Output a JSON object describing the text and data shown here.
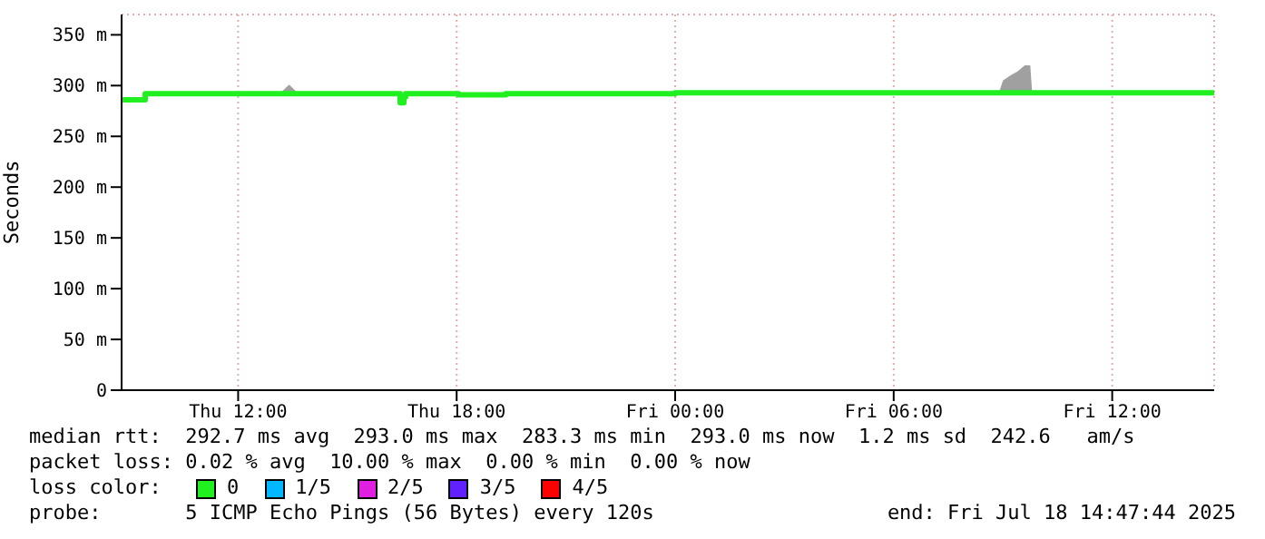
{
  "chart_data": {
    "type": "line",
    "ylabel": "Seconds",
    "x": [
      "2025-07-17T08:48",
      "2025-07-17T09:24",
      "2025-07-17T09:27",
      "2025-07-17T13:12",
      "2025-07-17T13:24",
      "2025-07-17T13:36",
      "2025-07-17T16:24",
      "2025-07-17T16:27",
      "2025-07-17T16:33",
      "2025-07-17T16:36",
      "2025-07-17T18:00",
      "2025-07-17T18:03",
      "2025-07-17T19:18",
      "2025-07-17T19:21",
      "2025-07-18T00:00",
      "2025-07-18T08:54",
      "2025-07-18T09:00",
      "2025-07-18T09:12",
      "2025-07-18T09:24",
      "2025-07-18T09:36",
      "2025-07-18T09:45",
      "2025-07-18T09:48",
      "2025-07-18T14:48"
    ],
    "series": [
      {
        "name": "0",
        "color": "#20f020",
        "values": [
          286,
          286,
          292,
          292,
          292,
          292,
          292,
          283,
          289,
          292,
          292,
          291,
          291,
          292,
          293,
          293,
          293,
          293,
          293,
          293,
          293,
          293,
          293
        ],
        "lower": [
          285,
          285,
          291,
          291,
          291,
          291,
          291,
          282,
          288,
          291,
          291,
          290,
          290,
          291,
          292,
          292,
          292,
          292,
          292,
          292,
          292,
          292,
          292
        ],
        "upper": [
          287,
          287,
          294,
          294,
          301,
          294,
          294,
          285,
          290,
          294,
          294,
          293,
          293,
          294,
          294,
          294,
          305,
          310,
          314,
          320,
          320,
          294,
          294
        ]
      },
      {
        "name": "1/5",
        "color": "#00b8ff",
        "values": [
          null,
          null,
          null,
          null,
          null,
          null,
          null,
          null,
          null,
          null,
          null,
          null,
          null,
          null,
          null,
          null,
          null,
          null,
          null,
          null,
          null,
          null,
          null
        ]
      },
      {
        "name": "2/5",
        "color": "#e020e0",
        "values": [
          null,
          null,
          null,
          null,
          null,
          null,
          null,
          null,
          null,
          null,
          null,
          null,
          null,
          null,
          null,
          null,
          null,
          null,
          null,
          null,
          null,
          null,
          null
        ]
      },
      {
        "name": "3/5",
        "color": "#6020ff",
        "values": [
          null,
          null,
          null,
          null,
          null,
          null,
          null,
          null,
          null,
          null,
          null,
          null,
          null,
          null,
          null,
          null,
          null,
          null,
          null,
          null,
          null,
          null,
          null
        ]
      },
      {
        "name": "4/5",
        "color": "#ff0000",
        "values": [
          null,
          null,
          null,
          null,
          null,
          null,
          null,
          null,
          null,
          null,
          null,
          null,
          null,
          null,
          null,
          null,
          null,
          null,
          null,
          null,
          null,
          null,
          null
        ]
      }
    ],
    "xlim": [
      "2025-07-17T08:48",
      "2025-07-18T14:48"
    ],
    "xticks": [
      {
        "value": "2025-07-17T12:00",
        "label": "Thu 12:00"
      },
      {
        "value": "2025-07-17T18:00",
        "label": "Thu 18:00"
      },
      {
        "value": "2025-07-18T00:00",
        "label": "Fri 00:00"
      },
      {
        "value": "2025-07-18T06:00",
        "label": "Fri 06:00"
      },
      {
        "value": "2025-07-18T12:00",
        "label": "Fri 12:00"
      }
    ],
    "ylim": [
      0,
      370
    ],
    "yticks": [
      0,
      {
        "value": 50,
        "label": "50 m"
      },
      {
        "value": 100,
        "label": "100 m"
      },
      {
        "value": 150,
        "label": "150 m"
      },
      {
        "value": 200,
        "label": "200 m"
      },
      {
        "value": 250,
        "label": "250 m"
      },
      {
        "value": 300,
        "label": "300 m"
      },
      {
        "value": 350,
        "label": "350 m"
      }
    ],
    "grid": true,
    "legend": "bottom",
    "legend_title": "loss color:",
    "marker": "none",
    "line_style": "solid",
    "annotations": [
      "median rtt:  292.7 ms avg  293.0 ms max  283.3 ms min  293.0 ms now  1.2 ms sd  242.6   am/s",
      "packet loss: 0.02 % avg  10.00 % max  0.00 % min  0.00 % now",
      "probe:       5 ICMP Echo Pings (56 Bytes) every 120s",
      "end: Fri Jul 18 14:47:44 2025"
    ]
  }
}
